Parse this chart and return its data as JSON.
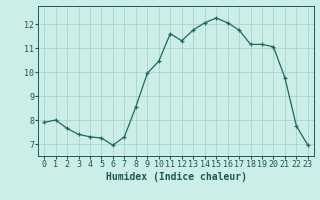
{
  "x": [
    0,
    1,
    2,
    3,
    4,
    5,
    6,
    7,
    8,
    9,
    10,
    11,
    12,
    13,
    14,
    15,
    16,
    17,
    18,
    19,
    20,
    21,
    22,
    23
  ],
  "y": [
    7.9,
    8.0,
    7.65,
    7.4,
    7.3,
    7.25,
    6.95,
    7.3,
    8.55,
    9.95,
    10.45,
    11.6,
    11.3,
    11.75,
    12.05,
    12.25,
    12.05,
    11.75,
    11.15,
    11.15,
    11.05,
    9.75,
    7.75,
    6.95
  ],
  "line_color": "#1a6b5a",
  "marker": "+",
  "marker_size": 3.5,
  "marker_linewidth": 0.9,
  "bg_color": "#cceee8",
  "grid_color": "#aad4cc",
  "xlabel": "Humidex (Indice chaleur)",
  "xlim": [
    -0.5,
    23.5
  ],
  "ylim": [
    6.5,
    12.75
  ],
  "yticks": [
    7,
    8,
    9,
    10,
    11,
    12
  ],
  "xticks": [
    0,
    1,
    2,
    3,
    4,
    5,
    6,
    7,
    8,
    9,
    10,
    11,
    12,
    13,
    14,
    15,
    16,
    17,
    18,
    19,
    20,
    21,
    22,
    23
  ],
  "tick_fontsize": 6.0,
  "xlabel_fontsize": 7.0,
  "tick_color": "#1a5a50",
  "line_width": 0.9
}
